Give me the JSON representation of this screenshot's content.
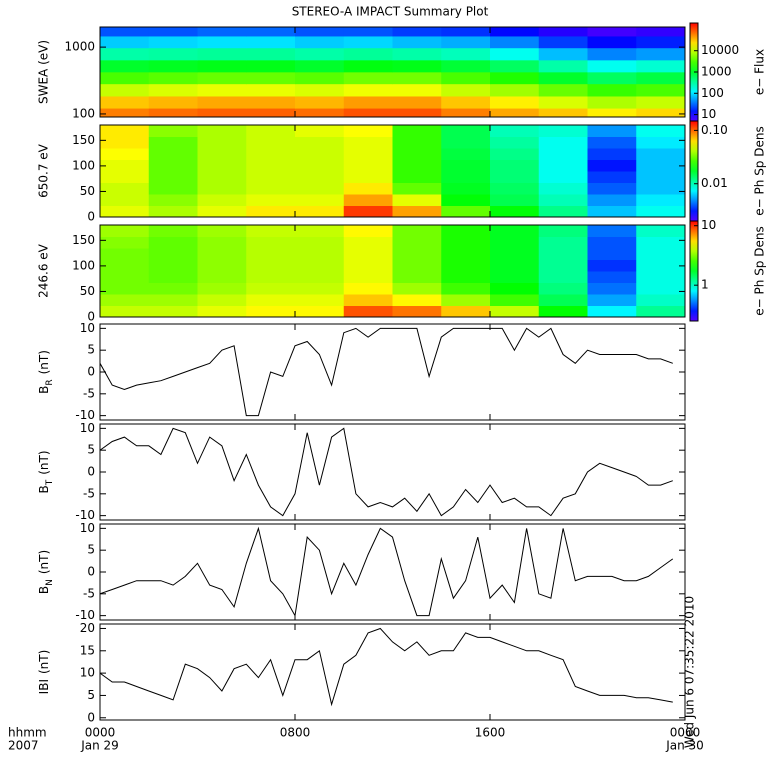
{
  "title": "STEREO-A IMPACT Summary Plot",
  "x_axis": {
    "xlim": [
      0,
      24
    ],
    "xticks": [
      {
        "value": 0,
        "label": "0000"
      },
      {
        "value": 8,
        "label": "0800"
      },
      {
        "value": 16,
        "label": "1600"
      },
      {
        "value": 24,
        "label": "0000"
      }
    ],
    "xtick_dates": [
      "Jan 29",
      null,
      null,
      "Jan 30"
    ],
    "corner_label": [
      "hhmm",
      "2007"
    ]
  },
  "timestamp": "Wed Jun 6 07:35:22 2010",
  "chart_data": [
    {
      "type": "heatmap",
      "ylabel": "SWEA (eV)",
      "log_y": true,
      "ylim": [
        90,
        2000
      ],
      "yticks": [
        100,
        1000
      ],
      "x": [
        0,
        2,
        4,
        6,
        8,
        10,
        12,
        14,
        16,
        18,
        20,
        22
      ],
      "y": [
        100,
        150,
        230,
        350,
        520,
        800,
        1200,
        1800
      ],
      "z": [
        [
          60000,
          70000,
          80000,
          80000,
          70000,
          90000,
          90000,
          60000,
          40000,
          30000,
          20000,
          25000
        ],
        [
          30000,
          35000,
          40000,
          40000,
          35000,
          45000,
          45000,
          30000,
          20000,
          12000,
          8000,
          10000
        ],
        [
          10000,
          12000,
          14000,
          14000,
          12000,
          15000,
          15000,
          10000,
          7000,
          4000,
          2500,
          3000
        ],
        [
          3000,
          3500,
          4000,
          4000,
          3500,
          4500,
          4500,
          3000,
          2000,
          1000,
          600,
          800
        ],
        [
          1000,
          1100,
          1200,
          1200,
          1000,
          1300,
          1200,
          900,
          600,
          300,
          150,
          200
        ],
        [
          300,
          320,
          350,
          350,
          300,
          350,
          300,
          250,
          150,
          70,
          40,
          50
        ],
        [
          80,
          90,
          100,
          100,
          80,
          90,
          70,
          60,
          40,
          20,
          12,
          15
        ],
        [
          25,
          25,
          30,
          30,
          25,
          25,
          20,
          18,
          12,
          8,
          6,
          7
        ]
      ],
      "colorbar": {
        "label": "e− Flux",
        "log": true,
        "clim": [
          5,
          200000
        ],
        "ticks": [
          10,
          100,
          1000,
          10000
        ]
      }
    },
    {
      "type": "heatmap",
      "ylabel": "650.7 eV",
      "log_y": false,
      "ylim": [
        0,
        180
      ],
      "yticks": [
        0,
        50,
        100,
        150
      ],
      "x": [
        0,
        2,
        4,
        6,
        8,
        10,
        12,
        14,
        16,
        18,
        20,
        22
      ],
      "y": [
        11.25,
        33.75,
        56.25,
        78.75,
        101.25,
        123.75,
        146.25,
        168.75
      ],
      "z": [
        [
          0.05,
          0.04,
          0.05,
          0.06,
          0.06,
          0.12,
          0.08,
          0.03,
          0.02,
          0.012,
          0.006,
          0.008
        ],
        [
          0.045,
          0.035,
          0.045,
          0.05,
          0.05,
          0.08,
          0.05,
          0.02,
          0.015,
          0.01,
          0.005,
          0.007
        ],
        [
          0.045,
          0.03,
          0.04,
          0.045,
          0.045,
          0.06,
          0.03,
          0.018,
          0.014,
          0.009,
          0.004,
          0.006
        ],
        [
          0.05,
          0.03,
          0.04,
          0.045,
          0.045,
          0.05,
          0.025,
          0.017,
          0.013,
          0.008,
          0.0035,
          0.006
        ],
        [
          0.05,
          0.03,
          0.04,
          0.045,
          0.045,
          0.05,
          0.025,
          0.017,
          0.013,
          0.008,
          0.003,
          0.006
        ],
        [
          0.055,
          0.03,
          0.04,
          0.045,
          0.045,
          0.05,
          0.025,
          0.016,
          0.012,
          0.008,
          0.0035,
          0.006
        ],
        [
          0.06,
          0.03,
          0.04,
          0.045,
          0.045,
          0.05,
          0.025,
          0.015,
          0.011,
          0.008,
          0.004,
          0.007
        ],
        [
          0.06,
          0.035,
          0.04,
          0.045,
          0.05,
          0.055,
          0.025,
          0.015,
          0.01,
          0.009,
          0.005,
          0.008
        ]
      ],
      "colorbar": {
        "label": "e− Ph Sp Dens",
        "log": true,
        "clim": [
          0.002,
          0.15
        ],
        "ticks": [
          0.01,
          {
            "value": 0.1,
            "label": "0.10"
          }
        ]
      }
    },
    {
      "type": "heatmap",
      "ylabel": "246.6 eV",
      "log_y": false,
      "ylim": [
        0,
        180
      ],
      "yticks": [
        0,
        50,
        100,
        150
      ],
      "x": [
        0,
        2,
        4,
        6,
        8,
        10,
        12,
        14,
        16,
        18,
        20,
        22
      ],
      "y": [
        11.25,
        33.75,
        56.25,
        78.75,
        101.25,
        123.75,
        146.25,
        168.75
      ],
      "z": [
        [
          4,
          4,
          4.5,
          5,
          5,
          9,
          8,
          6,
          4,
          2,
          0.8,
          1.2
        ],
        [
          3.5,
          3.5,
          4,
          4.5,
          4.5,
          6,
          5,
          3.5,
          2.5,
          1.5,
          0.6,
          1
        ],
        [
          3,
          3,
          3.5,
          4,
          4,
          5,
          3.5,
          2.5,
          2,
          1.3,
          0.5,
          0.9
        ],
        [
          3,
          2.8,
          3.3,
          3.8,
          3.8,
          4.5,
          3,
          2.2,
          1.8,
          1.2,
          0.45,
          0.9
        ],
        [
          3,
          2.8,
          3.3,
          3.8,
          3.8,
          4.5,
          3,
          2.2,
          1.8,
          1.2,
          0.4,
          0.9
        ],
        [
          3,
          2.8,
          3.3,
          3.8,
          3.8,
          4.5,
          3,
          2.2,
          1.8,
          1.2,
          0.45,
          0.9
        ],
        [
          3.2,
          2.8,
          3.3,
          3.8,
          3.8,
          4.5,
          3,
          2.2,
          1.8,
          1.2,
          0.45,
          0.9
        ],
        [
          3.5,
          3,
          3.5,
          4,
          4,
          5,
          3,
          2.2,
          1.8,
          1.3,
          0.5,
          1
        ]
      ],
      "colorbar": {
        "label": "e− Ph Sp Dens",
        "log": true,
        "clim": [
          0.25,
          12
        ],
        "ticks": [
          1,
          10
        ]
      }
    },
    {
      "type": "line",
      "ylabel": {
        "main": "B",
        "sub": "R",
        "unit": "(nT)"
      },
      "ylim": [
        -11,
        11
      ],
      "yticks": [
        -10,
        -5,
        0,
        5,
        10
      ],
      "x": [
        0,
        0.5,
        1,
        1.5,
        2,
        2.5,
        3,
        3.5,
        4,
        4.5,
        5,
        5.5,
        6,
        6.5,
        7,
        7.5,
        8,
        8.5,
        9,
        9.5,
        10,
        10.5,
        11,
        11.5,
        12,
        12.5,
        13,
        13.5,
        14,
        14.5,
        15,
        15.5,
        16,
        16.5,
        17,
        17.5,
        18,
        18.5,
        19,
        19.5,
        20,
        20.5,
        21,
        21.5,
        22,
        22.5,
        23,
        23.5
      ],
      "values": [
        2,
        -3,
        -4,
        -3,
        -2.5,
        -2,
        -1,
        0,
        1,
        2,
        5,
        6,
        -10,
        -10,
        0,
        -1,
        6,
        7,
        4,
        -3,
        9,
        10,
        8,
        10,
        10,
        10,
        10,
        -1,
        8,
        10,
        10,
        10,
        10,
        10,
        5,
        10,
        8,
        10,
        4,
        2,
        5,
        4,
        4,
        4,
        4,
        3,
        3,
        2
      ]
    },
    {
      "type": "line",
      "ylabel": {
        "main": "B",
        "sub": "T",
        "unit": "(nT)"
      },
      "ylim": [
        -11,
        11
      ],
      "yticks": [
        -10,
        -5,
        0,
        5,
        10
      ],
      "x": [
        0,
        0.5,
        1,
        1.5,
        2,
        2.5,
        3,
        3.5,
        4,
        4.5,
        5,
        5.5,
        6,
        6.5,
        7,
        7.5,
        8,
        8.5,
        9,
        9.5,
        10,
        10.5,
        11,
        11.5,
        12,
        12.5,
        13,
        13.5,
        14,
        14.5,
        15,
        15.5,
        16,
        16.5,
        17,
        17.5,
        18,
        18.5,
        19,
        19.5,
        20,
        20.5,
        21,
        21.5,
        22,
        22.5,
        23,
        23.5
      ],
      "values": [
        5,
        7,
        8,
        6,
        6,
        4,
        10,
        9,
        2,
        8,
        6,
        -2,
        4,
        -3,
        -8,
        -10,
        -5,
        9,
        -3,
        8,
        10,
        -5,
        -8,
        -7,
        -8,
        -6,
        -9,
        -5,
        -10,
        -8,
        -4,
        -7,
        -3,
        -7,
        -6,
        -8,
        -8,
        -10,
        -6,
        -5,
        0,
        2,
        1,
        0,
        -1,
        -3,
        -3,
        -2
      ]
    },
    {
      "type": "line",
      "ylabel": {
        "main": "B",
        "sub": "N",
        "unit": "(nT)"
      },
      "ylim": [
        -11,
        11
      ],
      "yticks": [
        -10,
        -5,
        0,
        5,
        10
      ],
      "x": [
        0,
        0.5,
        1,
        1.5,
        2,
        2.5,
        3,
        3.5,
        4,
        4.5,
        5,
        5.5,
        6,
        6.5,
        7,
        7.5,
        8,
        8.5,
        9,
        9.5,
        10,
        10.5,
        11,
        11.5,
        12,
        12.5,
        13,
        13.5,
        14,
        14.5,
        15,
        15.5,
        16,
        16.5,
        17,
        17.5,
        18,
        18.5,
        19,
        19.5,
        20,
        20.5,
        21,
        21.5,
        22,
        22.5,
        23,
        23.5
      ],
      "values": [
        -5,
        -4,
        -3,
        -2,
        -2,
        -2,
        -3,
        -1,
        2,
        -3,
        -4,
        -8,
        2,
        10,
        -2,
        -5,
        -10,
        8,
        5,
        -5,
        2,
        -3,
        4,
        10,
        8,
        -2,
        -10,
        -10,
        3,
        -6,
        -2,
        8,
        -6,
        -3,
        -7,
        10,
        -5,
        -6,
        10,
        -2,
        -1,
        -1,
        -1,
        -2,
        -2,
        -1,
        1,
        3
      ]
    },
    {
      "type": "line",
      "ylabel": {
        "main": "IBI",
        "sub": null,
        "unit": "(nT)"
      },
      "ylim": [
        -0.5,
        21
      ],
      "yticks": [
        0,
        5,
        10,
        15,
        20
      ],
      "x": [
        0,
        0.5,
        1,
        1.5,
        2,
        2.5,
        3,
        3.5,
        4,
        4.5,
        5,
        5.5,
        6,
        6.5,
        7,
        7.5,
        8,
        8.5,
        9,
        9.5,
        10,
        10.5,
        11,
        11.5,
        12,
        12.5,
        13,
        13.5,
        14,
        14.5,
        15,
        15.5,
        16,
        16.5,
        17,
        17.5,
        18,
        18.5,
        19,
        19.5,
        20,
        20.5,
        21,
        21.5,
        22,
        22.5,
        23,
        23.5
      ],
      "values": [
        10,
        8,
        8,
        7,
        6,
        5,
        4,
        12,
        11,
        9,
        6,
        11,
        12,
        9,
        13,
        5,
        13,
        13,
        15,
        3,
        12,
        14,
        19,
        20,
        17,
        15,
        17,
        14,
        15,
        15,
        19,
        18,
        18,
        17,
        16,
        15,
        15,
        14,
        13,
        7,
        6,
        5,
        5,
        5,
        4.5,
        4.5,
        4,
        3.5
      ]
    }
  ]
}
